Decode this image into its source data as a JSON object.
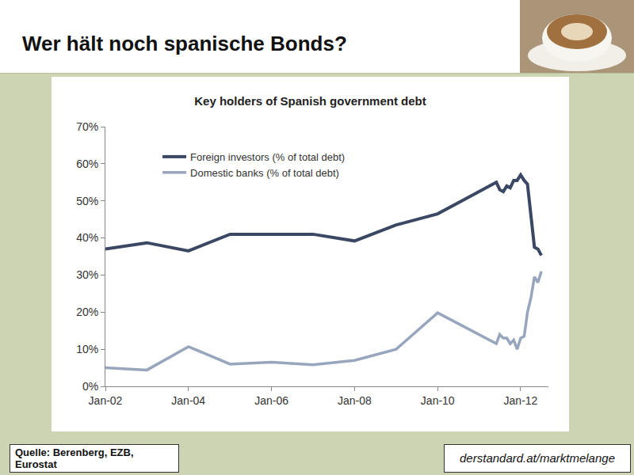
{
  "slide": {
    "title": "Wer hält noch spanische Bonds?",
    "source": "Quelle: Berenberg, EZB, Eurostat",
    "site": "derstandard.at/marktmelange"
  },
  "chart_data": {
    "type": "line",
    "title": "Key holders of Spanish government debt",
    "x": [
      "2002-01",
      "2003-01",
      "2004-01",
      "2005-01",
      "2006-01",
      "2007-01",
      "2008-01",
      "2009-01",
      "2010-01",
      "2011-06",
      "2011-07",
      "2011-08",
      "2011-09",
      "2011-10",
      "2011-11",
      "2011-12",
      "2012-01",
      "2012-02",
      "2012-03",
      "2012-04",
      "2012-05",
      "2012-06",
      "2012-07"
    ],
    "series": [
      {
        "name": "Foreign investors (% of total debt)",
        "color": "#3b4864",
        "values": [
          37,
          38.7,
          36.5,
          41,
          41,
          41,
          39.2,
          43.5,
          46.5,
          55,
          53,
          52.5,
          54,
          53.5,
          55.5,
          55.5,
          57,
          55.5,
          54.5,
          46,
          37.5,
          37,
          35.3
        ]
      },
      {
        "name": "Domestic banks (% of total debt)",
        "color": "#98a6bd",
        "values": [
          5,
          4.4,
          10.7,
          6,
          6.5,
          5.8,
          7,
          10,
          19.8,
          11.5,
          14,
          13,
          13,
          11.5,
          12.5,
          10,
          13,
          13.5,
          20,
          24,
          29.5,
          28,
          31
        ]
      }
    ],
    "xlim": [
      "2002-01",
      "2012-09"
    ],
    "xticks": [
      {
        "value": "2002-01",
        "label": "Jan-02"
      },
      {
        "value": "2004-01",
        "label": "Jan-04"
      },
      {
        "value": "2006-01",
        "label": "Jan-06"
      },
      {
        "value": "2008-01",
        "label": "Jan-08"
      },
      {
        "value": "2010-01",
        "label": "Jan-10"
      },
      {
        "value": "2012-01",
        "label": "Jan-12"
      }
    ],
    "ylim": [
      0,
      70
    ],
    "yticks": [
      {
        "value": 0,
        "label": "0%"
      },
      {
        "value": 10,
        "label": "10%"
      },
      {
        "value": 20,
        "label": "20%"
      },
      {
        "value": 30,
        "label": "30%"
      },
      {
        "value": 40,
        "label": "40%"
      },
      {
        "value": 50,
        "label": "50%"
      },
      {
        "value": 60,
        "label": "60%"
      },
      {
        "value": 70,
        "label": "70%"
      }
    ],
    "grid": false,
    "legend": "top left"
  }
}
